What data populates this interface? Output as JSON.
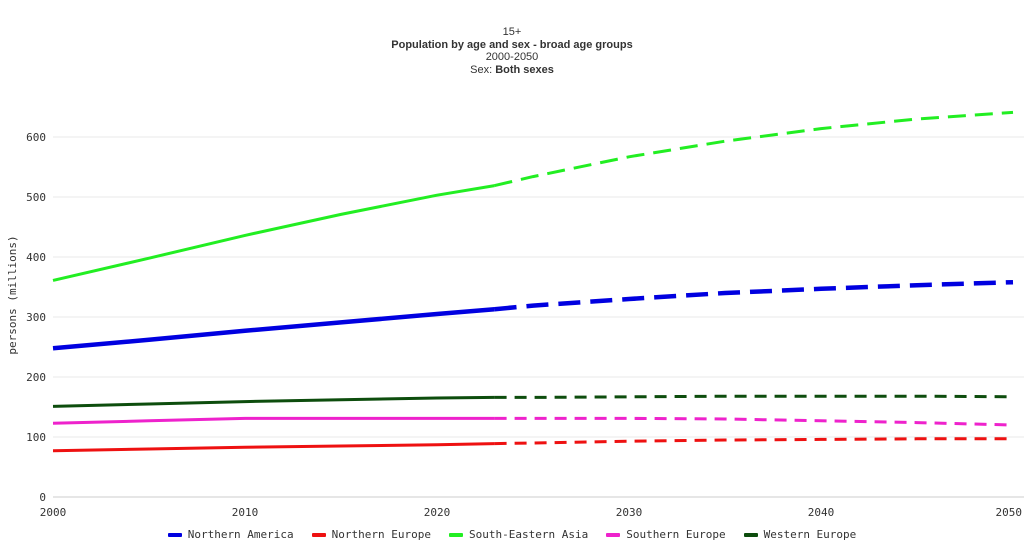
{
  "header": {
    "line1": "15+",
    "title": "Population by age and sex - broad age groups",
    "range": "2000-2050",
    "sex_label": "Sex: ",
    "sex_value": "Both sexes"
  },
  "chart_data": {
    "type": "line",
    "ylabel": "persons (millions)",
    "xlim": [
      2000,
      2050
    ],
    "ylim": [
      0,
      650
    ],
    "x_ticks": [
      2000,
      2010,
      2020,
      2030,
      2040,
      2050
    ],
    "y_ticks": [
      0,
      100,
      200,
      300,
      400,
      500,
      600
    ],
    "projection_start": 2023,
    "grid": true,
    "legend_position": "bottom",
    "x": [
      2000,
      2005,
      2010,
      2015,
      2020,
      2023,
      2025,
      2030,
      2035,
      2040,
      2045,
      2050
    ],
    "series": [
      {
        "name": "Northern America",
        "color": "#0000e0",
        "values": [
          248,
          262,
          277,
          291,
          305,
          313,
          319,
          330,
          340,
          347,
          353,
          358
        ]
      },
      {
        "name": "Northern Europe",
        "color": "#ee1111",
        "values": [
          77,
          80,
          83,
          85,
          87,
          89,
          90,
          93,
          95,
          96,
          97,
          97
        ]
      },
      {
        "name": "South-Eastern Asia",
        "color": "#22ee22",
        "values": [
          361,
          398,
          436,
          471,
          503,
          519,
          534,
          567,
          593,
          614,
          630,
          641
        ]
      },
      {
        "name": "Southern Europe",
        "color": "#ee22cc",
        "values": [
          123,
          127,
          131,
          131,
          131,
          131,
          131,
          131,
          130,
          127,
          124,
          120
        ]
      },
      {
        "name": "Western Europe",
        "color": "#0d4d0d",
        "values": [
          151,
          155,
          159,
          162,
          165,
          166,
          166,
          167,
          168,
          168,
          168,
          167
        ]
      }
    ]
  }
}
